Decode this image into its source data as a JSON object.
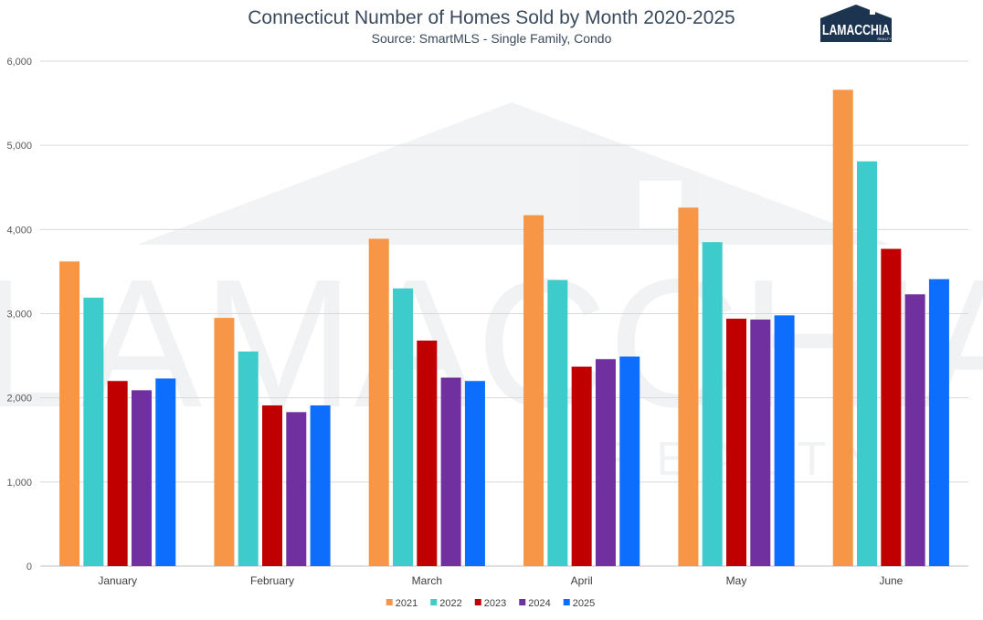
{
  "chart_data": {
    "type": "bar",
    "title": "Connecticut Number of Homes Sold by Month 2020-2025",
    "subtitle": "Source: SmartMLS - Single Family, Condo",
    "categories": [
      "January",
      "February",
      "March",
      "April",
      "May",
      "June"
    ],
    "series": [
      {
        "name": "2021",
        "color": "#f79646",
        "values": [
          3620,
          2950,
          3890,
          4170,
          4260,
          5660
        ]
      },
      {
        "name": "2022",
        "color": "#3ecbcb",
        "values": [
          3190,
          2550,
          3300,
          3400,
          3850,
          4810
        ]
      },
      {
        "name": "2023",
        "color": "#c00000",
        "values": [
          2200,
          1910,
          2680,
          2370,
          2940,
          3770
        ]
      },
      {
        "name": "2024",
        "color": "#7030a0",
        "values": [
          2090,
          1830,
          2240,
          2460,
          2930,
          3230
        ]
      },
      {
        "name": "2025",
        "color": "#0d6efd",
        "values": [
          2230,
          1910,
          2200,
          2490,
          2980,
          3410
        ]
      }
    ],
    "ylim": [
      0,
      6000
    ],
    "yticks": [
      "0",
      "1,000",
      "2,000",
      "3,000",
      "4,000",
      "5,000",
      "6,000"
    ],
    "grid": true,
    "legend": "bottom"
  },
  "logo": {
    "text": "LAMACCHIA",
    "sub": "REALTY",
    "color": "#1c3450"
  },
  "watermark": {
    "text": "LAMACCHIA",
    "sub": "REALTY"
  }
}
